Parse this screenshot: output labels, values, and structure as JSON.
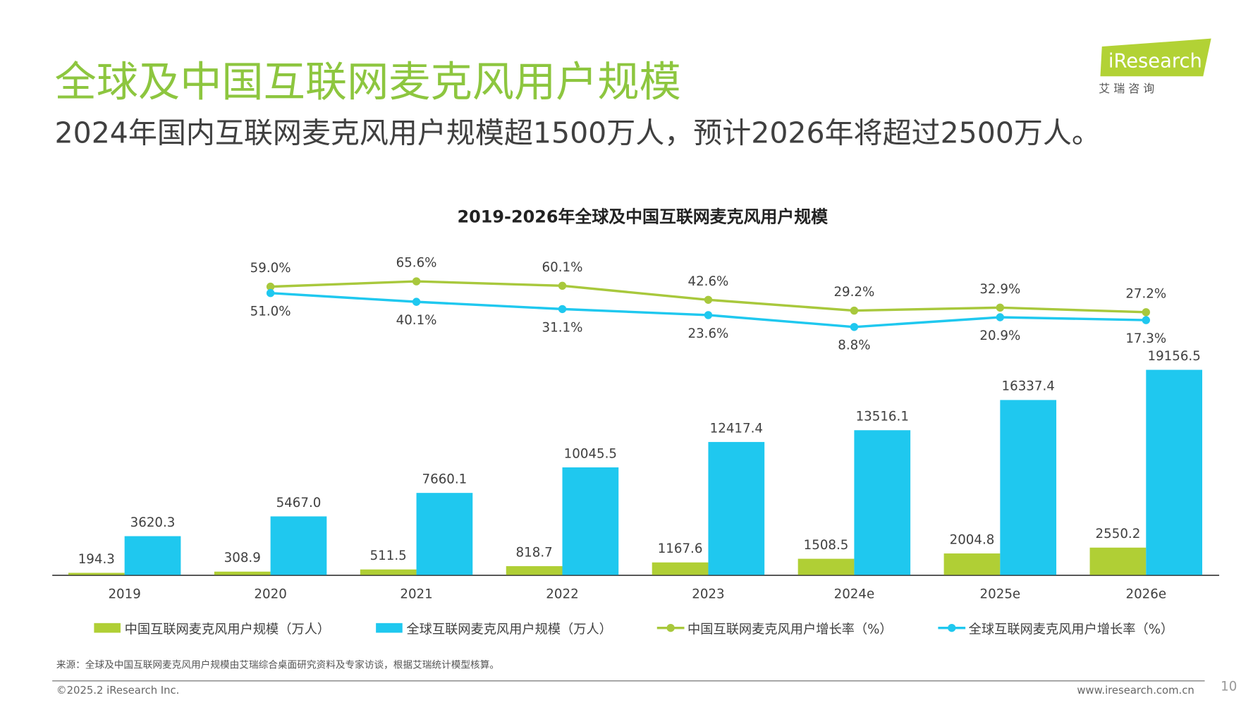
{
  "header": {
    "title": "全球及中国互联网麦克风用户规模",
    "subtitle": "2024年国内互联网麦克风用户规模超1500万人，预计2026年将超过2500万人。"
  },
  "logo": {
    "brand": "iResearch",
    "sub": "艾 瑞 咨 询"
  },
  "chart_data": {
    "type": "bar-line",
    "title": "2019-2026年全球及中国互联网麦克风用户规模",
    "categories": [
      "2019",
      "2020",
      "2021",
      "2022",
      "2023",
      "2024e",
      "2025e",
      "2026e"
    ],
    "ylim": [
      0,
      30000
    ],
    "y2lim": [
      -300,
      100
    ],
    "series": [
      {
        "name": "中国互联网麦克风用户规模（万人）",
        "type": "bar",
        "color": "#b0cf35",
        "values": [
          194.3,
          308.9,
          511.5,
          818.7,
          1167.6,
          1508.5,
          2004.8,
          2550.2
        ],
        "value_labels": [
          "194.3",
          "308.9",
          "511.5",
          "818.7",
          "1167.6",
          "1508.5",
          "2004.8",
          "2550.2"
        ]
      },
      {
        "name": "全球互联网麦克风用户规模（万人）",
        "type": "bar",
        "color": "#1fc8ef",
        "values": [
          3620.3,
          5467.0,
          7660.1,
          10045.5,
          12417.4,
          13516.1,
          16337.4,
          19156.5
        ],
        "value_labels": [
          "3620.3",
          "5467.0",
          "7660.1",
          "10045.5",
          "12417.4",
          "13516.1",
          "16337.4",
          "19156.5"
        ]
      },
      {
        "name": "中国互联网麦克风用户增长率（%）",
        "type": "line",
        "axis": "y2",
        "color": "#a8c83c",
        "values": [
          null,
          59.0,
          65.6,
          60.1,
          42.6,
          29.2,
          32.9,
          27.2
        ],
        "value_labels": [
          null,
          "59.0%",
          "65.6%",
          "60.1%",
          "42.6%",
          "29.2%",
          "32.9%",
          "27.2%"
        ]
      },
      {
        "name": "全球互联网麦克风用户增长率（%）",
        "type": "line",
        "axis": "y2",
        "color": "#1fc8ef",
        "values": [
          null,
          51.0,
          40.1,
          31.1,
          23.6,
          8.8,
          20.9,
          17.3
        ],
        "value_labels": [
          null,
          "51.0%",
          "40.1%",
          "31.1%",
          "23.6%",
          "8.8%",
          "20.9%",
          "17.3%"
        ]
      }
    ]
  },
  "footer": {
    "source": "来源：全球及中国互联网麦克风用户规模由艾瑞综合桌面研究资料及专家访谈，根据艾瑞统计模型核算。",
    "copyright": "©2025.2 iResearch Inc.",
    "website": "www.iresearch.com.cn",
    "page": "10"
  }
}
